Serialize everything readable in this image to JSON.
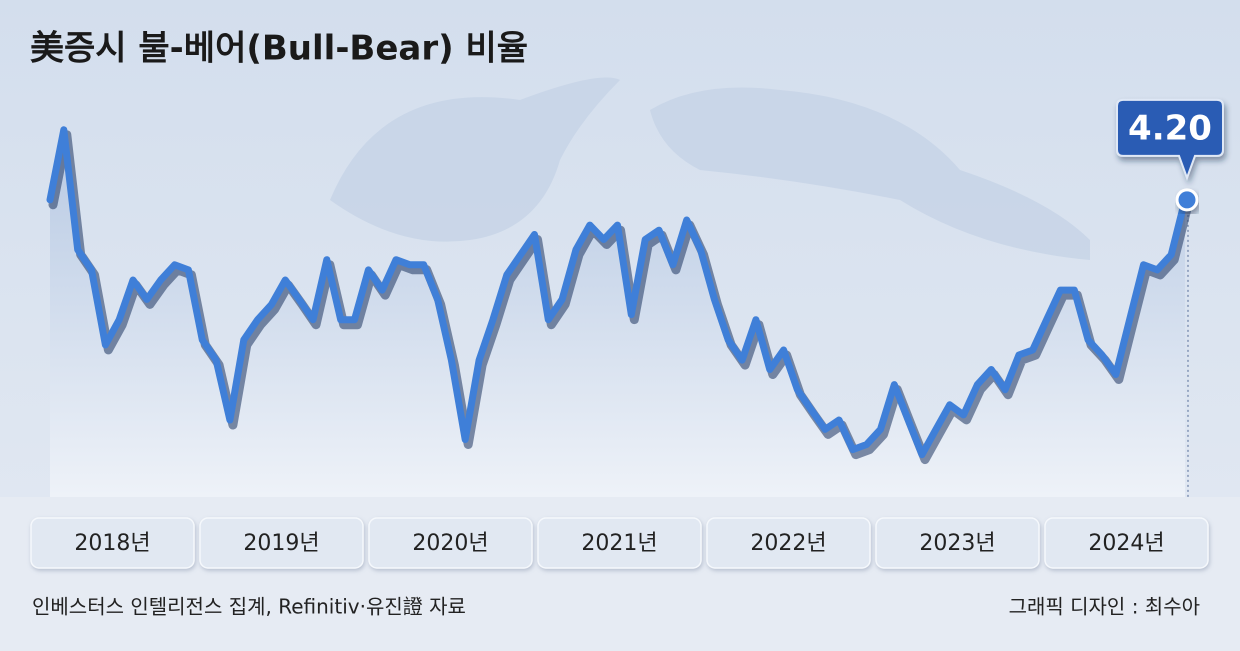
{
  "chart_data": {
    "type": "line",
    "title": "美증시 불-베어(Bull-Bear) 비율",
    "source": "인베스터스 인텔리전스 집계, Refinitiv·유진證 자료",
    "credit": "그래픽 디자인 : 최수아",
    "year_labels": [
      "2018년",
      "2019년",
      "2020년",
      "2021년",
      "2022년",
      "2023년",
      "2024년"
    ],
    "color": "#3f7fd8",
    "ylim": [
      0,
      5.5
    ],
    "values": [
      4.2,
      5.17,
      3.51,
      3.23,
      2.19,
      2.54,
      3.09,
      2.82,
      3.09,
      3.3,
      3.23,
      2.26,
      1.98,
      1.15,
      2.26,
      2.54,
      2.75,
      3.09,
      2.82,
      2.54,
      3.37,
      2.54,
      2.54,
      3.23,
      2.95,
      3.37,
      3.3,
      3.3,
      2.82,
      1.98,
      0.88,
      1.98,
      2.54,
      3.16,
      3.44,
      3.72,
      2.54,
      2.82,
      3.51,
      3.85,
      3.65,
      3.85,
      2.61,
      3.65,
      3.78,
      3.3,
      3.92,
      3.51,
      2.82,
      2.26,
      1.98,
      2.54,
      1.85,
      2.12,
      1.57,
      1.29,
      1.02,
      1.15,
      0.74,
      0.81,
      1.02,
      1.64,
      1.15,
      0.67,
      1.02,
      1.36,
      1.22,
      1.64,
      1.85,
      1.57,
      2.05,
      2.12,
      2.54,
      2.95,
      2.95,
      2.26,
      2.05,
      1.78,
      2.54,
      3.3,
      3.23,
      3.44,
      4.2
    ],
    "value_labels": [
      null,
      null,
      null,
      null,
      null,
      null,
      null,
      null,
      null,
      null,
      null,
      null,
      null,
      null,
      null,
      null,
      null,
      null,
      null,
      null,
      null,
      null,
      null,
      null,
      null,
      null,
      null,
      null,
      null,
      null,
      null,
      null,
      null,
      null,
      null,
      null,
      null,
      null,
      null,
      null,
      null,
      null,
      null,
      null,
      null,
      null,
      null,
      null,
      null,
      null,
      null,
      null,
      null,
      null,
      null,
      null,
      null,
      null,
      null,
      null,
      null,
      null,
      null,
      null,
      null,
      null,
      null,
      null,
      null,
      null,
      null,
      null,
      null,
      null,
      null,
      null,
      null,
      null,
      null,
      null,
      null,
      null,
      "4.20"
    ]
  }
}
